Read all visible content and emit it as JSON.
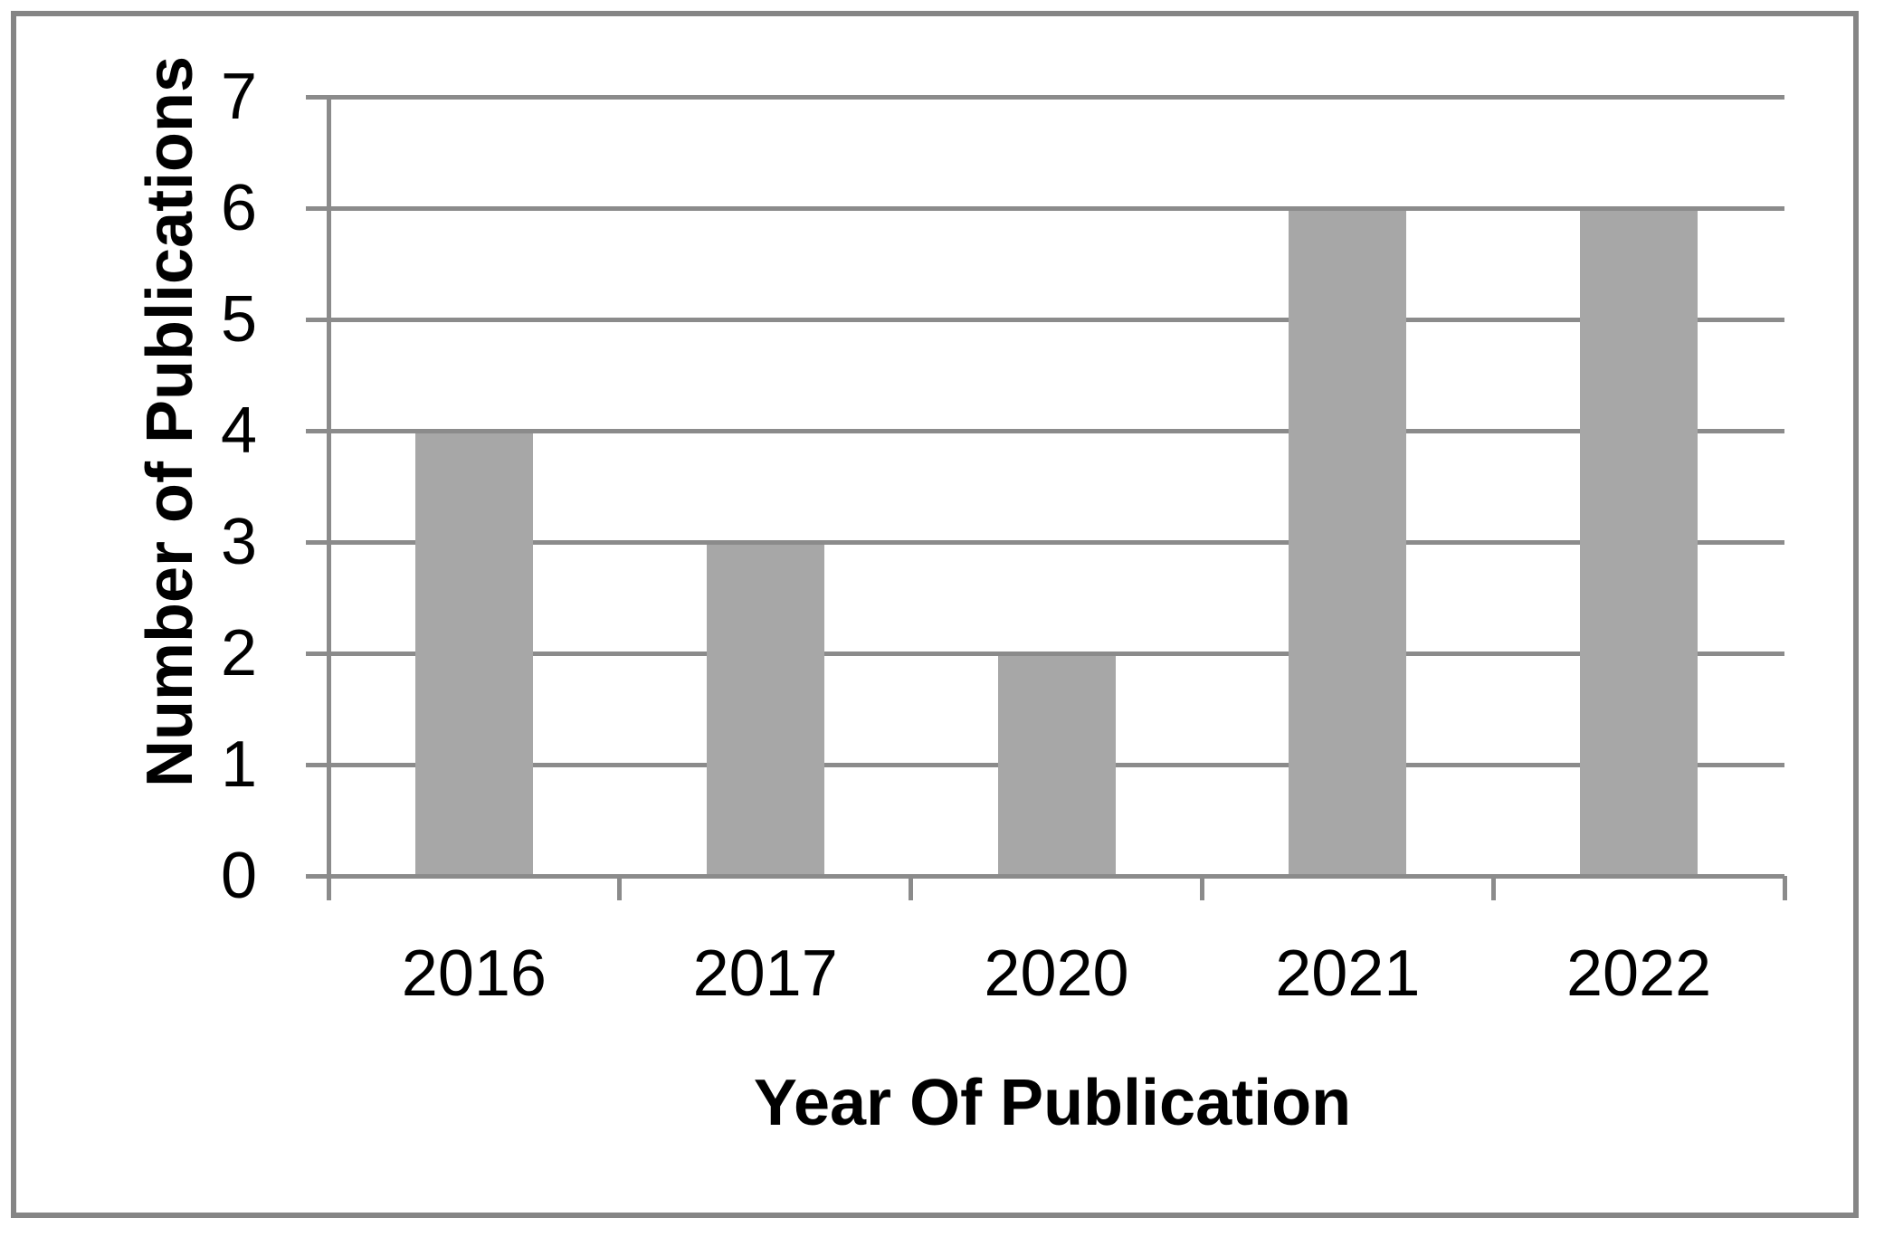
{
  "chart_data": {
    "type": "bar",
    "categories": [
      "2016",
      "2017",
      "2020",
      "2021",
      "2022"
    ],
    "values": [
      4,
      3,
      2,
      6,
      6
    ],
    "title": "",
    "xlabel": "Year Of Publication",
    "ylabel": "Number of Publications",
    "ylim": [
      0,
      7
    ],
    "yticks": [
      0,
      1,
      2,
      3,
      4,
      5,
      6,
      7
    ],
    "grid": true,
    "legend_position": "none",
    "bar_color": "#a7a7a7",
    "grid_color": "#8b8b8b",
    "border_color": "#858585",
    "text_color": "#000000"
  }
}
